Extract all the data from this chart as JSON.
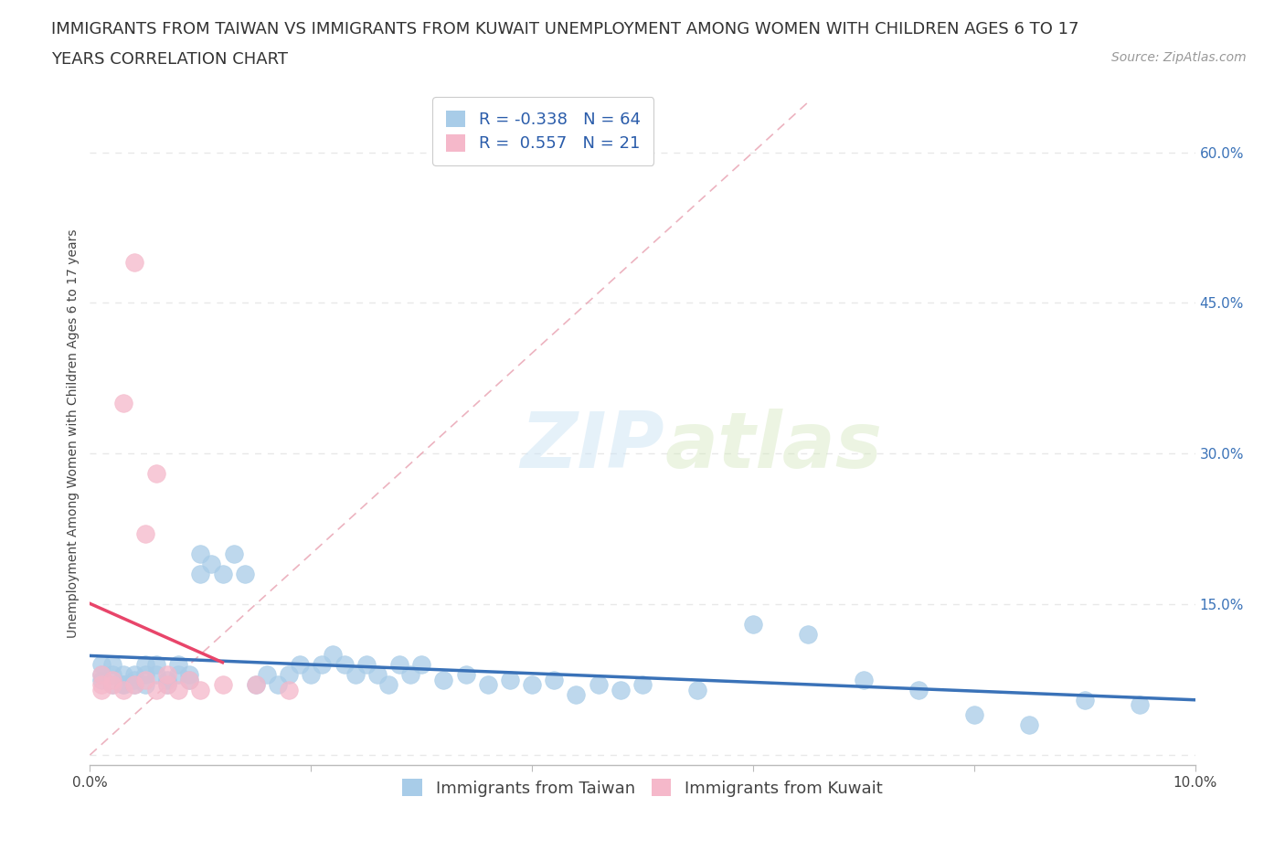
{
  "title_line1": "IMMIGRANTS FROM TAIWAN VS IMMIGRANTS FROM KUWAIT UNEMPLOYMENT AMONG WOMEN WITH CHILDREN AGES 6 TO 17",
  "title_line2": "YEARS CORRELATION CHART",
  "source": "Source: ZipAtlas.com",
  "ylabel": "Unemployment Among Women with Children Ages 6 to 17 years",
  "xlim": [
    0.0,
    0.1
  ],
  "ylim": [
    -0.01,
    0.65
  ],
  "taiwan_color": "#a8cce8",
  "kuwait_color": "#f5b8ca",
  "taiwan_line_color": "#3a72b8",
  "kuwait_line_color": "#e8456a",
  "dash_line_color": "#e8a0b0",
  "R_taiwan": -0.338,
  "N_taiwan": 64,
  "R_kuwait": 0.557,
  "N_kuwait": 21,
  "taiwan_x": [
    0.001,
    0.001,
    0.001,
    0.002,
    0.002,
    0.002,
    0.003,
    0.003,
    0.003,
    0.004,
    0.004,
    0.004,
    0.005,
    0.005,
    0.005,
    0.006,
    0.006,
    0.007,
    0.007,
    0.008,
    0.008,
    0.009,
    0.009,
    0.01,
    0.01,
    0.011,
    0.012,
    0.013,
    0.014,
    0.015,
    0.016,
    0.017,
    0.018,
    0.019,
    0.02,
    0.021,
    0.022,
    0.023,
    0.024,
    0.025,
    0.026,
    0.027,
    0.028,
    0.029,
    0.03,
    0.032,
    0.034,
    0.036,
    0.038,
    0.04,
    0.042,
    0.044,
    0.046,
    0.048,
    0.05,
    0.055,
    0.06,
    0.065,
    0.07,
    0.075,
    0.08,
    0.085,
    0.09,
    0.095
  ],
  "taiwan_y": [
    0.075,
    0.08,
    0.09,
    0.07,
    0.08,
    0.09,
    0.07,
    0.08,
    0.07,
    0.075,
    0.08,
    0.07,
    0.09,
    0.08,
    0.07,
    0.08,
    0.09,
    0.075,
    0.07,
    0.08,
    0.09,
    0.08,
    0.075,
    0.18,
    0.2,
    0.19,
    0.18,
    0.2,
    0.18,
    0.07,
    0.08,
    0.07,
    0.08,
    0.09,
    0.08,
    0.09,
    0.1,
    0.09,
    0.08,
    0.09,
    0.08,
    0.07,
    0.09,
    0.08,
    0.09,
    0.075,
    0.08,
    0.07,
    0.075,
    0.07,
    0.075,
    0.06,
    0.07,
    0.065,
    0.07,
    0.065,
    0.13,
    0.12,
    0.075,
    0.065,
    0.04,
    0.03,
    0.055,
    0.05
  ],
  "kuwait_x": [
    0.001,
    0.001,
    0.001,
    0.002,
    0.002,
    0.003,
    0.003,
    0.004,
    0.004,
    0.005,
    0.005,
    0.006,
    0.006,
    0.007,
    0.007,
    0.008,
    0.009,
    0.01,
    0.012,
    0.015,
    0.018
  ],
  "kuwait_y": [
    0.065,
    0.07,
    0.08,
    0.07,
    0.075,
    0.065,
    0.35,
    0.07,
    0.49,
    0.075,
    0.22,
    0.065,
    0.28,
    0.07,
    0.08,
    0.065,
    0.075,
    0.065,
    0.07,
    0.07,
    0.065
  ],
  "watermark_zip": "ZIP",
  "watermark_atlas": "atlas",
  "background_color": "#ffffff",
  "grid_color": "#e8e8e8",
  "title_fontsize": 13,
  "axis_label_fontsize": 10,
  "tick_fontsize": 11,
  "legend_fontsize": 13,
  "source_fontsize": 10
}
